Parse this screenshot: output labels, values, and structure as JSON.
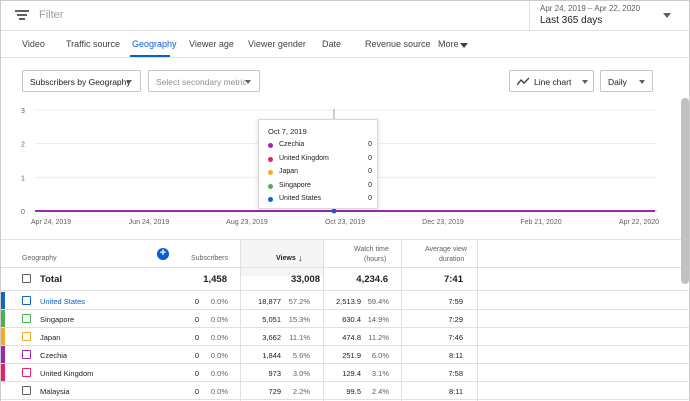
{
  "filter": {
    "placeholder": "Filter",
    "icon": "filter-list-icon"
  },
  "date": {
    "range": "Apr 24, 2019 – Apr 22, 2020",
    "preset": "Last 365 days"
  },
  "tabs": [
    {
      "label": "Video"
    },
    {
      "label": "Traffic source"
    },
    {
      "label": "Geography"
    },
    {
      "label": "Viewer age"
    },
    {
      "label": "Viewer gender"
    },
    {
      "label": "Date"
    },
    {
      "label": "Revenue source"
    },
    {
      "label": "More"
    }
  ],
  "active_tab": "Geography",
  "controls": {
    "metric": "Subscribers by Geography",
    "secondary_placeholder": "Select secondary metric",
    "chart_type": "Line chart",
    "granularity": "Daily"
  },
  "chart_data": {
    "type": "line",
    "x_ticks": [
      "Apr 24, 2019",
      "Jun 24, 2019",
      "Aug 23, 2019",
      "Oct 23, 2019",
      "Dec 23, 2019",
      "Feb 21, 2020",
      "Apr 22, 2020"
    ],
    "y_ticks": [
      "0",
      "1",
      "2",
      "3"
    ],
    "ylim": [
      0,
      3
    ],
    "grid": true,
    "series": [
      {
        "name": "Czechia",
        "color": "#9c27b0",
        "values": [
          0,
          0,
          0,
          0,
          0,
          0,
          0
        ]
      }
    ],
    "hover_date_index": 3.5,
    "tooltip": {
      "date": "Oct 7, 2019",
      "rows": [
        {
          "name": "Czechia",
          "value": "0",
          "color": "#9c27b0"
        },
        {
          "name": "United Kingdom",
          "value": "0",
          "color": "#e91e63"
        },
        {
          "name": "Japan",
          "value": "0",
          "color": "#f9a825"
        },
        {
          "name": "Singapore",
          "value": "0",
          "color": "#4caf50"
        },
        {
          "name": "United States",
          "value": "0",
          "color": "#1565c0"
        }
      ]
    }
  },
  "table": {
    "headers": {
      "geography": "Geography",
      "subscribers": "Subscribers",
      "views": "Views",
      "watch_time_1": "Watch time",
      "watch_time_2": "(hours)",
      "avd_1": "Average view",
      "avd_2": "duration"
    },
    "total": {
      "label": "Total",
      "subscribers": "1,458",
      "views": "33,008",
      "watch_time": "4,234.6",
      "avd": "7:41"
    },
    "rows": [
      {
        "name": "United States",
        "color": "#1565c0",
        "subs": "0",
        "subs_pct": "0.0%",
        "views": "18,877",
        "views_pct": "57.2%",
        "wt": "2,513.9",
        "wt_pct": "59.4%",
        "avd": "7:59",
        "link": true
      },
      {
        "name": "Singapore",
        "color": "#4caf50",
        "subs": "0",
        "subs_pct": "0.0%",
        "views": "5,051",
        "views_pct": "15.3%",
        "wt": "630.4",
        "wt_pct": "14.9%",
        "avd": "7:29",
        "link": false
      },
      {
        "name": "Japan",
        "color": "#f9a825",
        "subs": "0",
        "subs_pct": "0.0%",
        "views": "3,662",
        "views_pct": "11.1%",
        "wt": "474.8",
        "wt_pct": "11.2%",
        "avd": "7:46",
        "link": false
      },
      {
        "name": "Czechia",
        "color": "#9c27b0",
        "subs": "0",
        "subs_pct": "0.0%",
        "views": "1,844",
        "views_pct": "5.6%",
        "wt": "251.9",
        "wt_pct": "6.0%",
        "avd": "8:11",
        "link": false
      },
      {
        "name": "United Kingdom",
        "color": "#e91e63",
        "subs": "0",
        "subs_pct": "0.0%",
        "views": "973",
        "views_pct": "3.0%",
        "wt": "129.4",
        "wt_pct": "3.1%",
        "avd": "7:58",
        "link": false
      },
      {
        "name": "Malaysia",
        "color": "",
        "subs": "0",
        "subs_pct": "0.0%",
        "views": "729",
        "views_pct": "2.2%",
        "wt": "99.5",
        "wt_pct": "2.4%",
        "avd": "8:11",
        "link": false
      }
    ]
  }
}
